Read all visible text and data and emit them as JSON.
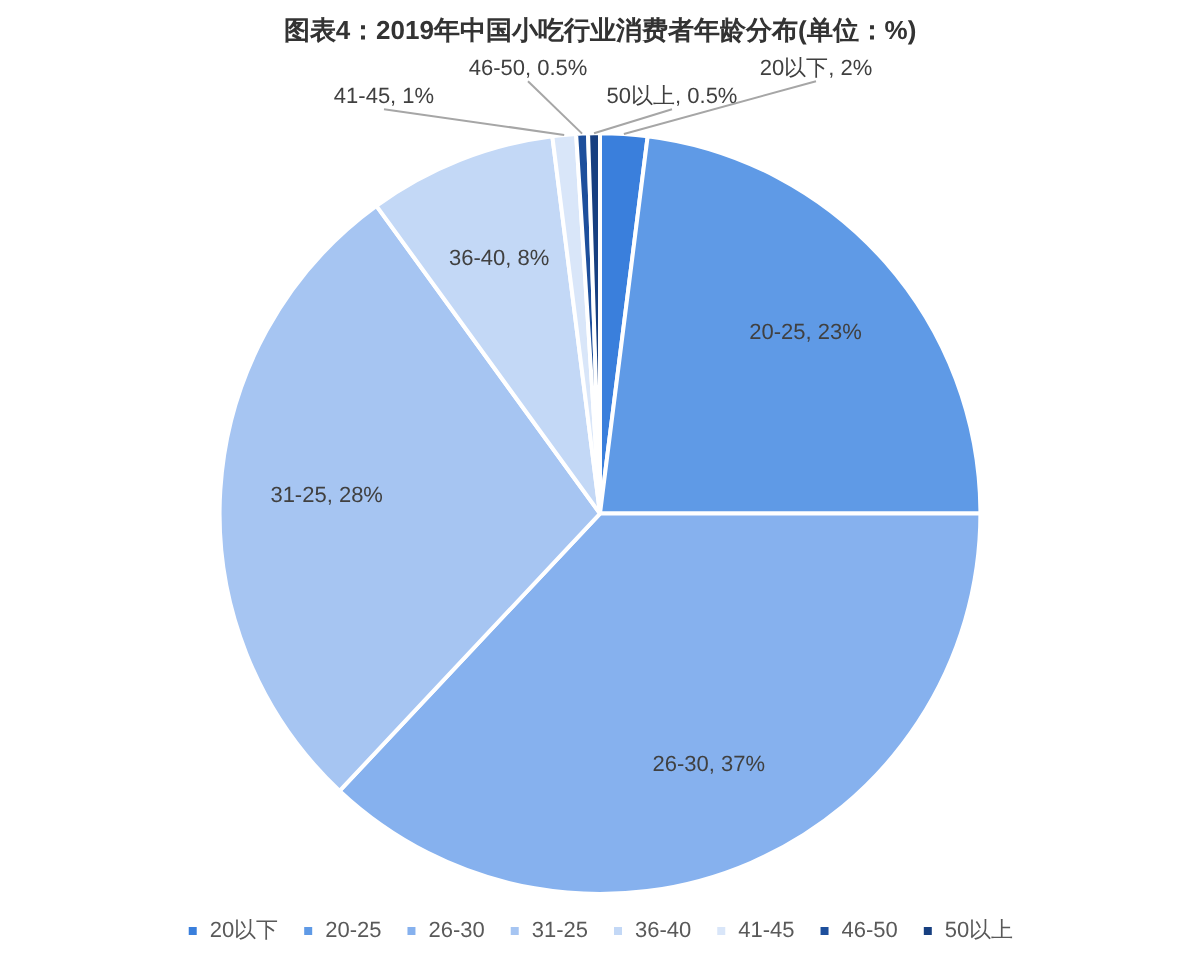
{
  "chart_data": {
    "type": "pie",
    "title": "图表4：2019年中国小吃行业消费者年龄分布(单位：%)",
    "categories": [
      "20以下",
      "20-25",
      "26-30",
      "31-25",
      "36-40",
      "41-45",
      "46-50",
      "50以上"
    ],
    "values": [
      2,
      23,
      37,
      28,
      8,
      1,
      0.5,
      0.5
    ],
    "colors": [
      "#3a7fdc",
      "#5f9ae6",
      "#86b1ee",
      "#a6c5f2",
      "#c3d8f6",
      "#d9e6f9",
      "#1d4f9c",
      "#173f80"
    ],
    "value_labels": [
      "20以下, 2%",
      "20-25, 23%",
      "26-30, 37%",
      "31-25, 28%",
      "36-40, 8%",
      "41-45, 1%",
      "46-50, 0.5%",
      "50以上, 0.5%"
    ],
    "legend": "bottom"
  }
}
